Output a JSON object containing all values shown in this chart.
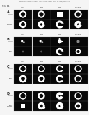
{
  "header_text": "Patent Application Publication   Aug. 21, 2008 Sheet 1 of 12   US 2008/0206277 A1",
  "fig_label": "FIG. 11",
  "bg": "#f5f5f5",
  "cell_bg": "#0a0a0a",
  "grid_sections": [
    {
      "label": "A",
      "col_headers": [
        "GFP1",
        "GFP2",
        "Pdm",
        "Merged"
      ],
      "row_labels": [
        "control",
        "over-\nexpress"
      ],
      "rows": [
        [
          "ring_white",
          "ring_white",
          "bright_square",
          "ring_white"
        ],
        [
          "ring_open_large",
          "c_open",
          "white_blob_complex",
          "c_white"
        ]
      ]
    },
    {
      "label": "B",
      "col_headers": [
        "GFP1",
        "GFP2",
        "Pdm",
        "Merged"
      ],
      "row_labels": [
        "control",
        "over-\nexpress"
      ],
      "rows": [
        [
          "small_dots",
          "small_dots",
          "figure_complex",
          "small_gray"
        ],
        [
          "tiny_dot",
          "tiny_dot",
          "c_shape_bright",
          "blob_center"
        ]
      ]
    },
    {
      "label": "C",
      "col_headers": [
        "GFP1",
        "GFP2",
        "Pdm",
        "Merged"
      ],
      "row_labels": [
        "control",
        "over-\nexpress"
      ],
      "rows": [
        [
          "ring_thin",
          "ring_thin",
          "ring_open",
          "ring_thin"
        ],
        [
          "ring_bright",
          "ring_open_large",
          "c_tall",
          "ring_thin"
        ]
      ]
    },
    {
      "label": "D",
      "col_headers": [
        "GFP1",
        "GFP2",
        "Pdm",
        "Merged"
      ],
      "row_labels": [
        "control",
        "over-\nexpress"
      ],
      "rows": [
        [
          "ring_thin",
          "ring_bright_full",
          "c_open_right",
          "ring_thin"
        ],
        [
          "blob_sq",
          "white_complex",
          "c_curl",
          "blob_sq2"
        ]
      ]
    }
  ]
}
